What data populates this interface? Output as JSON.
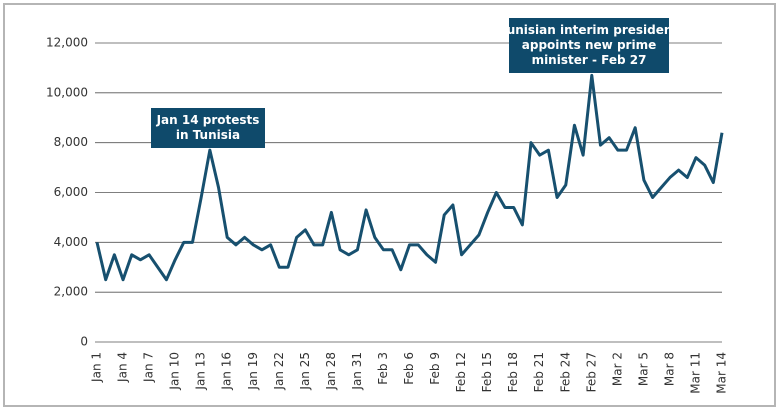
{
  "chart_data": {
    "type": "line",
    "categories": [
      "Jan 1",
      null,
      null,
      "Jan 4",
      null,
      null,
      "Jan 7",
      null,
      null,
      "Jan 10",
      null,
      null,
      "Jan 13",
      null,
      null,
      "Jan 16",
      null,
      null,
      "Jan 19",
      null,
      null,
      "Jan 22",
      null,
      null,
      "Jan 25",
      null,
      null,
      "Jan 28",
      null,
      null,
      "Jan 31",
      null,
      null,
      "Feb 3",
      null,
      null,
      "Feb 6",
      null,
      null,
      "Feb 9",
      null,
      null,
      "Feb 12",
      null,
      null,
      "Feb 15",
      null,
      null,
      "Feb 18",
      null,
      null,
      "Feb 21",
      null,
      null,
      "Feb 24",
      null,
      null,
      "Feb 27",
      null,
      null,
      "Mar 2",
      null,
      null,
      "Mar 5",
      null,
      null,
      "Mar 8",
      null,
      null,
      "Mar 11",
      null,
      null,
      "Mar 14"
    ],
    "values": [
      4000,
      2500,
      3500,
      2500,
      3500,
      3300,
      3500,
      3000,
      2500,
      3300,
      4000,
      4000,
      5800,
      7700,
      6200,
      4200,
      3900,
      4200,
      3900,
      3700,
      3900,
      3000,
      3000,
      4200,
      4500,
      3900,
      3900,
      5200,
      3700,
      3500,
      3700,
      5300,
      4200,
      3700,
      3700,
      2900,
      3900,
      3900,
      3500,
      3200,
      5100,
      5500,
      3500,
      3900,
      4300,
      5200,
      6000,
      5400,
      5400,
      4700,
      8000,
      7500,
      7700,
      5800,
      6300,
      8700,
      7500,
      10700,
      7900,
      8200,
      7700,
      7700,
      8600,
      6500,
      5800,
      6200,
      6600,
      6900,
      6600,
      7400,
      7100,
      6400,
      8400
    ],
    "color": "#17506f",
    "ylim": [
      0,
      12000
    ],
    "yticks": [
      {
        "value": 0,
        "label": "0"
      },
      {
        "value": 2000,
        "label": "2,000"
      },
      {
        "value": 4000,
        "label": "4,000"
      },
      {
        "value": 6000,
        "label": "6,000"
      },
      {
        "value": 8000,
        "label": "8,000"
      },
      {
        "value": 10000,
        "label": "10,000"
      },
      {
        "value": 12000,
        "label": "12,000"
      }
    ],
    "grid": true,
    "annotations": [
      {
        "lines": [
          "Jan 14 protests",
          "in Tunisia"
        ]
      },
      {
        "lines": [
          "Tunisian interim president",
          "appoints new prime",
          "minister - Feb 27"
        ]
      }
    ]
  }
}
